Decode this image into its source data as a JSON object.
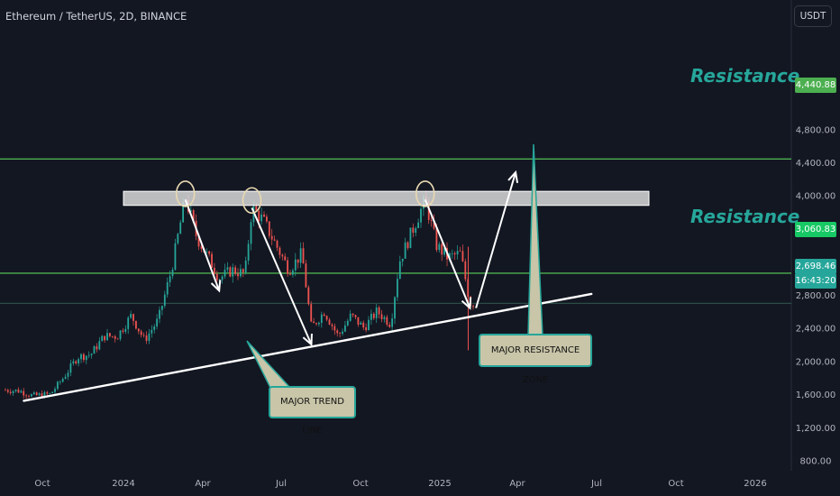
{
  "header": {
    "symbol_line": "Ethereum / TetherUS, 2D, BINANCE"
  },
  "currency_button": "USDT",
  "colors": {
    "background": "#131722",
    "up_candle": "#26a69a",
    "down_candle": "#ef5350",
    "resistance_line": "#4caf50",
    "trend_line": "#ffffff",
    "zone_fill": "#d9d9d9",
    "callout_fill": "#c8c5a8"
  },
  "annotations": {
    "resistance_upper": "Resistance",
    "resistance_lower": "Resistance",
    "trend_callout": "MAJOR TREND LINE",
    "zone_callout": "MAJOR RESISTANCE ZONE"
  },
  "price_tags": {
    "upper_resistance": "4,440.88",
    "lower_resistance": "3,060.83",
    "current_price": "2,698.46",
    "countdown": "16:43:20"
  },
  "chart_data": {
    "type": "candlestick",
    "x_axis_ticks": [
      "Oct",
      "2024",
      "Apr",
      "Jul",
      "Oct",
      "2025",
      "Apr",
      "Jul",
      "Oct",
      "2026"
    ],
    "y_axis_ticks": [
      "4,800.00",
      "4,400.00",
      "4,000.00",
      "3,600.00",
      "3,200.00",
      "2,800.00",
      "2,400.00",
      "2,000.00",
      "1,600.00",
      "1,200.00",
      "800.00"
    ],
    "y_values": [
      4800,
      4400,
      4000,
      3600,
      3200,
      2800,
      2400,
      2000,
      1600,
      1200,
      800
    ],
    "ylim": [
      800,
      5000
    ],
    "grid": false,
    "resistance_levels": [
      4440.88,
      3060.83
    ],
    "resistance_zone": [
      3880,
      4050
    ],
    "current_price": 2698.46,
    "trend_line": {
      "start": [
        "2023-09-10",
        1520
      ],
      "end": [
        "2025-06-25",
        2810
      ]
    },
    "price_path": [
      [
        "2023-08-20",
        1650
      ],
      [
        "2023-09-05",
        1640
      ],
      [
        "2023-09-20",
        1580
      ],
      [
        "2023-10-10",
        1600
      ],
      [
        "2023-10-25",
        1800
      ],
      [
        "2023-11-10",
        2050
      ],
      [
        "2023-11-25",
        2080
      ],
      [
        "2023-12-10",
        2300
      ],
      [
        "2023-12-25",
        2300
      ],
      [
        "2024-01-10",
        2550
      ],
      [
        "2024-01-25",
        2250
      ],
      [
        "2024-02-10",
        2500
      ],
      [
        "2024-02-25",
        3100
      ],
      [
        "2024-03-12",
        3980
      ],
      [
        "2024-03-25",
        3500
      ],
      [
        "2024-04-10",
        3200
      ],
      [
        "2024-04-20",
        3000
      ],
      [
        "2024-05-05",
        3100
      ],
      [
        "2024-05-20",
        3050
      ],
      [
        "2024-05-28",
        3850
      ],
      [
        "2024-06-10",
        3700
      ],
      [
        "2024-06-25",
        3400
      ],
      [
        "2024-07-10",
        3100
      ],
      [
        "2024-07-25",
        3300
      ],
      [
        "2024-08-05",
        2400
      ],
      [
        "2024-08-20",
        2600
      ],
      [
        "2024-09-05",
        2300
      ],
      [
        "2024-09-20",
        2550
      ],
      [
        "2024-10-05",
        2400
      ],
      [
        "2024-10-20",
        2600
      ],
      [
        "2024-11-05",
        2450
      ],
      [
        "2024-11-15",
        3200
      ],
      [
        "2024-12-01",
        3600
      ],
      [
        "2024-12-15",
        3950
      ],
      [
        "2024-12-28",
        3400
      ],
      [
        "2025-01-10",
        3250
      ],
      [
        "2025-01-25",
        3300
      ],
      [
        "2025-02-05",
        2700
      ],
      [
        "2025-02-10",
        2698
      ]
    ],
    "wicks": [
      [
        "2025-02-03",
        3380,
        2130
      ]
    ],
    "pattern_arrows": [
      [
        [
          "2024-03-12",
          3950
        ],
        [
          "2024-04-20",
          2850
        ]
      ],
      [
        [
          "2024-05-28",
          3850
        ],
        [
          "2024-08-05",
          2200
        ]
      ],
      [
        [
          "2024-12-15",
          3950
        ],
        [
          "2025-02-05",
          2640
        ]
      ],
      [
        [
          "2025-02-12",
          2640
        ],
        [
          "2025-03-30",
          4280
        ]
      ]
    ],
    "peak_markers": [
      [
        "2024-03-12",
        4020
      ],
      [
        "2024-05-28",
        3940
      ],
      [
        "2024-12-15",
        4020
      ]
    ]
  }
}
